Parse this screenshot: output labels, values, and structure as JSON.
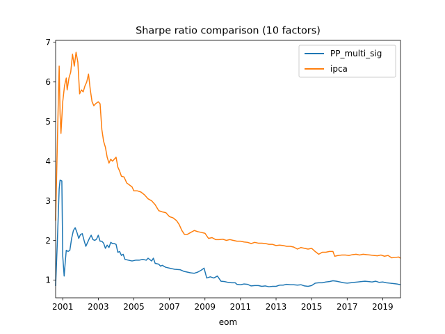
{
  "chart_data": {
    "type": "line",
    "title": "Sharpe ratio comparison (10 factors)",
    "xlabel": "eom",
    "ylabel": "",
    "xlim": [
      2000.6,
      2020.0
    ],
    "ylim": [
      0.55,
      7.05
    ],
    "x_ticks": [
      2001,
      2003,
      2005,
      2007,
      2009,
      2011,
      2013,
      2015,
      2017,
      2019
    ],
    "x_tick_labels": [
      "2001",
      "2003",
      "2005",
      "2007",
      "2009",
      "2011",
      "2013",
      "2015",
      "2017",
      "2019"
    ],
    "y_ticks": [
      1,
      2,
      3,
      4,
      5,
      6,
      7
    ],
    "y_tick_labels": [
      "1",
      "2",
      "3",
      "4",
      "5",
      "6",
      "7"
    ],
    "grid": false,
    "legend_position": "top-right",
    "series": [
      {
        "name": "PP_multi_sig",
        "color": "#1f77b4",
        "points": [
          [
            2000.6,
            0.85
          ],
          [
            2000.7,
            2.0
          ],
          [
            2000.8,
            3.3
          ],
          [
            2000.85,
            3.52
          ],
          [
            2000.95,
            3.5
          ],
          [
            2001.0,
            1.6
          ],
          [
            2001.08,
            1.1
          ],
          [
            2001.15,
            1.5
          ],
          [
            2001.2,
            1.75
          ],
          [
            2001.3,
            1.72
          ],
          [
            2001.4,
            1.75
          ],
          [
            2001.5,
            2.05
          ],
          [
            2001.6,
            2.25
          ],
          [
            2001.7,
            2.32
          ],
          [
            2001.8,
            2.2
          ],
          [
            2001.9,
            2.05
          ],
          [
            2002.0,
            2.15
          ],
          [
            2002.1,
            2.17
          ],
          [
            2002.2,
            2.0
          ],
          [
            2002.3,
            1.85
          ],
          [
            2002.4,
            1.95
          ],
          [
            2002.5,
            2.05
          ],
          [
            2002.6,
            2.13
          ],
          [
            2002.7,
            2.02
          ],
          [
            2002.8,
            2.0
          ],
          [
            2002.9,
            2.03
          ],
          [
            2003.0,
            2.13
          ],
          [
            2003.1,
            1.98
          ],
          [
            2003.2,
            1.98
          ],
          [
            2003.3,
            1.93
          ],
          [
            2003.4,
            1.8
          ],
          [
            2003.5,
            1.88
          ],
          [
            2003.6,
            1.82
          ],
          [
            2003.7,
            1.95
          ],
          [
            2003.8,
            1.92
          ],
          [
            2003.9,
            1.92
          ],
          [
            2004.0,
            1.9
          ],
          [
            2004.1,
            1.7
          ],
          [
            2004.2,
            1.72
          ],
          [
            2004.3,
            1.62
          ],
          [
            2004.4,
            1.65
          ],
          [
            2004.5,
            1.52
          ],
          [
            2004.7,
            1.5
          ],
          [
            2004.9,
            1.48
          ],
          [
            2005.1,
            1.5
          ],
          [
            2005.3,
            1.5
          ],
          [
            2005.5,
            1.52
          ],
          [
            2005.7,
            1.5
          ],
          [
            2005.8,
            1.55
          ],
          [
            2006.0,
            1.48
          ],
          [
            2006.1,
            1.55
          ],
          [
            2006.2,
            1.42
          ],
          [
            2006.4,
            1.4
          ],
          [
            2006.5,
            1.35
          ],
          [
            2006.6,
            1.37
          ],
          [
            2006.8,
            1.32
          ],
          [
            2007.0,
            1.3
          ],
          [
            2007.3,
            1.27
          ],
          [
            2007.6,
            1.26
          ],
          [
            2007.8,
            1.22
          ],
          [
            2008.0,
            1.2
          ],
          [
            2008.2,
            1.18
          ],
          [
            2008.4,
            1.17
          ],
          [
            2008.6,
            1.2
          ],
          [
            2008.8,
            1.25
          ],
          [
            2008.95,
            1.3
          ],
          [
            2009.1,
            1.05
          ],
          [
            2009.3,
            1.08
          ],
          [
            2009.5,
            1.05
          ],
          [
            2009.7,
            1.1
          ],
          [
            2009.9,
            0.97
          ],
          [
            2010.1,
            0.96
          ],
          [
            2010.3,
            0.94
          ],
          [
            2010.5,
            0.93
          ],
          [
            2010.7,
            0.93
          ],
          [
            2010.8,
            0.89
          ],
          [
            2011.0,
            0.88
          ],
          [
            2011.2,
            0.9
          ],
          [
            2011.4,
            0.89
          ],
          [
            2011.6,
            0.85
          ],
          [
            2011.8,
            0.86
          ],
          [
            2012.0,
            0.86
          ],
          [
            2012.2,
            0.84
          ],
          [
            2012.4,
            0.85
          ],
          [
            2012.6,
            0.83
          ],
          [
            2012.8,
            0.84
          ],
          [
            2013.0,
            0.84
          ],
          [
            2013.2,
            0.87
          ],
          [
            2013.4,
            0.87
          ],
          [
            2013.6,
            0.89
          ],
          [
            2013.8,
            0.88
          ],
          [
            2014.0,
            0.88
          ],
          [
            2014.2,
            0.87
          ],
          [
            2014.4,
            0.88
          ],
          [
            2014.6,
            0.85
          ],
          [
            2014.8,
            0.84
          ],
          [
            2015.0,
            0.86
          ],
          [
            2015.2,
            0.92
          ],
          [
            2015.4,
            0.93
          ],
          [
            2015.6,
            0.93
          ],
          [
            2015.8,
            0.95
          ],
          [
            2016.0,
            0.96
          ],
          [
            2016.2,
            0.98
          ],
          [
            2016.4,
            0.97
          ],
          [
            2016.6,
            0.95
          ],
          [
            2016.8,
            0.93
          ],
          [
            2017.0,
            0.92
          ],
          [
            2017.2,
            0.93
          ],
          [
            2017.4,
            0.94
          ],
          [
            2017.6,
            0.95
          ],
          [
            2017.8,
            0.96
          ],
          [
            2018.0,
            0.97
          ],
          [
            2018.2,
            0.96
          ],
          [
            2018.4,
            0.95
          ],
          [
            2018.6,
            0.97
          ],
          [
            2018.8,
            0.94
          ],
          [
            2019.0,
            0.95
          ],
          [
            2019.2,
            0.93
          ],
          [
            2019.4,
            0.92
          ],
          [
            2019.6,
            0.91
          ],
          [
            2019.8,
            0.9
          ],
          [
            2020.0,
            0.88
          ]
        ]
      },
      {
        "name": "ipca",
        "color": "#ff7f0e",
        "points": [
          [
            2000.6,
            2.5
          ],
          [
            2000.7,
            4.5
          ],
          [
            2000.75,
            5.5
          ],
          [
            2000.8,
            6.4
          ],
          [
            2000.85,
            5.2
          ],
          [
            2000.9,
            4.7
          ],
          [
            2001.0,
            5.5
          ],
          [
            2001.1,
            5.9
          ],
          [
            2001.2,
            6.1
          ],
          [
            2001.25,
            5.8
          ],
          [
            2001.35,
            6.1
          ],
          [
            2001.45,
            6.25
          ],
          [
            2001.55,
            6.7
          ],
          [
            2001.65,
            6.4
          ],
          [
            2001.75,
            6.75
          ],
          [
            2001.85,
            6.5
          ],
          [
            2001.95,
            5.7
          ],
          [
            2002.05,
            5.8
          ],
          [
            2002.15,
            5.75
          ],
          [
            2002.25,
            5.9
          ],
          [
            2002.35,
            6.0
          ],
          [
            2002.45,
            6.2
          ],
          [
            2002.55,
            5.8
          ],
          [
            2002.65,
            5.5
          ],
          [
            2002.75,
            5.4
          ],
          [
            2002.85,
            5.45
          ],
          [
            2003.0,
            5.5
          ],
          [
            2003.1,
            5.45
          ],
          [
            2003.2,
            4.8
          ],
          [
            2003.3,
            4.5
          ],
          [
            2003.4,
            4.35
          ],
          [
            2003.5,
            4.1
          ],
          [
            2003.6,
            3.95
          ],
          [
            2003.7,
            4.05
          ],
          [
            2003.8,
            4.0
          ],
          [
            2003.9,
            4.05
          ],
          [
            2004.0,
            4.1
          ],
          [
            2004.1,
            3.85
          ],
          [
            2004.2,
            3.75
          ],
          [
            2004.3,
            3.62
          ],
          [
            2004.45,
            3.6
          ],
          [
            2004.6,
            3.45
          ],
          [
            2004.75,
            3.4
          ],
          [
            2004.9,
            3.35
          ],
          [
            2005.0,
            3.25
          ],
          [
            2005.2,
            3.25
          ],
          [
            2005.4,
            3.22
          ],
          [
            2005.6,
            3.15
          ],
          [
            2005.8,
            3.05
          ],
          [
            2006.0,
            3.0
          ],
          [
            2006.2,
            2.9
          ],
          [
            2006.4,
            2.75
          ],
          [
            2006.6,
            2.72
          ],
          [
            2006.8,
            2.7
          ],
          [
            2007.0,
            2.6
          ],
          [
            2007.2,
            2.57
          ],
          [
            2007.4,
            2.5
          ],
          [
            2007.55,
            2.4
          ],
          [
            2007.7,
            2.25
          ],
          [
            2007.85,
            2.15
          ],
          [
            2008.0,
            2.15
          ],
          [
            2008.2,
            2.2
          ],
          [
            2008.4,
            2.25
          ],
          [
            2008.6,
            2.22
          ],
          [
            2008.8,
            2.2
          ],
          [
            2009.0,
            2.18
          ],
          [
            2009.2,
            2.05
          ],
          [
            2009.4,
            2.07
          ],
          [
            2009.6,
            2.02
          ],
          [
            2009.8,
            2.02
          ],
          [
            2010.0,
            2.03
          ],
          [
            2010.2,
            2.0
          ],
          [
            2010.4,
            2.02
          ],
          [
            2010.6,
            2.0
          ],
          [
            2010.8,
            1.98
          ],
          [
            2011.0,
            1.98
          ],
          [
            2011.2,
            1.96
          ],
          [
            2011.4,
            1.95
          ],
          [
            2011.6,
            1.92
          ],
          [
            2011.8,
            1.95
          ],
          [
            2012.0,
            1.93
          ],
          [
            2012.2,
            1.93
          ],
          [
            2012.4,
            1.92
          ],
          [
            2012.6,
            1.9
          ],
          [
            2012.8,
            1.9
          ],
          [
            2013.0,
            1.87
          ],
          [
            2013.2,
            1.88
          ],
          [
            2013.4,
            1.87
          ],
          [
            2013.6,
            1.85
          ],
          [
            2013.8,
            1.85
          ],
          [
            2014.0,
            1.83
          ],
          [
            2014.2,
            1.78
          ],
          [
            2014.4,
            1.82
          ],
          [
            2014.6,
            1.8
          ],
          [
            2014.8,
            1.78
          ],
          [
            2015.0,
            1.8
          ],
          [
            2015.2,
            1.72
          ],
          [
            2015.4,
            1.65
          ],
          [
            2015.6,
            1.7
          ],
          [
            2015.8,
            1.7
          ],
          [
            2016.0,
            1.72
          ],
          [
            2016.2,
            1.72
          ],
          [
            2016.3,
            1.6
          ],
          [
            2016.5,
            1.62
          ],
          [
            2016.7,
            1.63
          ],
          [
            2016.9,
            1.63
          ],
          [
            2017.1,
            1.62
          ],
          [
            2017.3,
            1.64
          ],
          [
            2017.5,
            1.65
          ],
          [
            2017.7,
            1.63
          ],
          [
            2017.9,
            1.65
          ],
          [
            2018.1,
            1.64
          ],
          [
            2018.3,
            1.63
          ],
          [
            2018.5,
            1.62
          ],
          [
            2018.7,
            1.61
          ],
          [
            2018.9,
            1.63
          ],
          [
            2019.1,
            1.6
          ],
          [
            2019.3,
            1.62
          ],
          [
            2019.5,
            1.56
          ],
          [
            2019.7,
            1.57
          ],
          [
            2019.9,
            1.58
          ],
          [
            2020.0,
            1.55
          ]
        ]
      }
    ]
  }
}
